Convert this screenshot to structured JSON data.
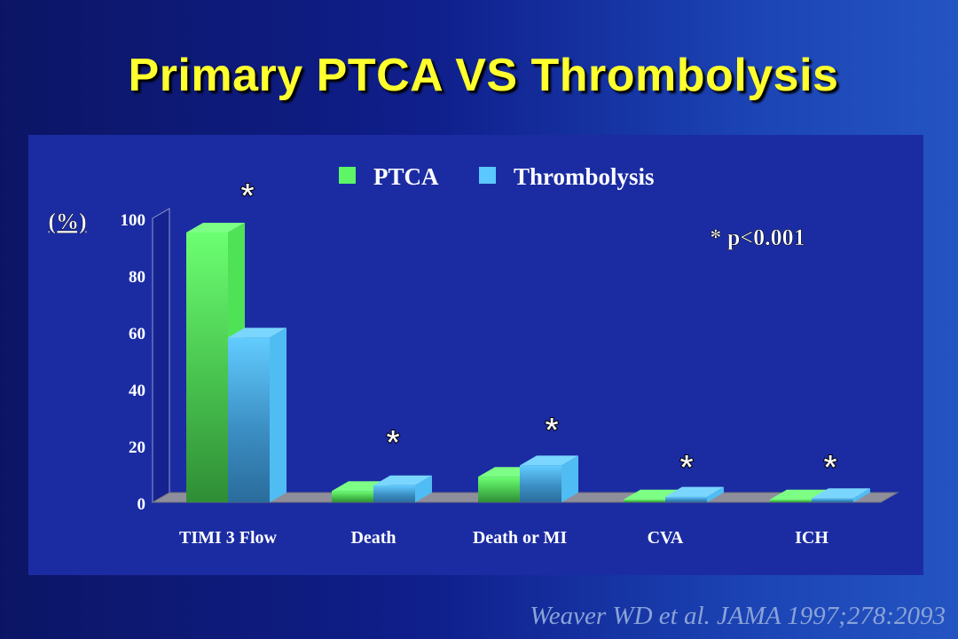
{
  "slide": {
    "title": "Primary PTCA VS Thrombolysis",
    "citation": "Weaver WD  et al. JAMA 1997;278:2093"
  },
  "chart_data": {
    "type": "bar",
    "categories": [
      "TIMI 3 Flow",
      "Death",
      "Death or MI",
      "CVA",
      "ICH"
    ],
    "series": [
      {
        "name": "PTCA",
        "values": [
          95,
          4,
          9,
          1,
          1
        ],
        "color": "#5ef566"
      },
      {
        "name": "Thrombolysis",
        "values": [
          58,
          6,
          13,
          2,
          1.5
        ],
        "color": "#5bc8ff"
      }
    ],
    "ylabel": "(%)",
    "ylim": [
      0,
      100
    ],
    "yticks": [
      0,
      20,
      40,
      60,
      80,
      100
    ],
    "significance_marker": "*",
    "significant_categories": [
      "TIMI 3 Flow",
      "Death",
      "Death or MI",
      "CVA",
      "ICH"
    ],
    "annotation": "* p<0.001",
    "legend_position": "top",
    "grid": false,
    "style": "3d"
  }
}
